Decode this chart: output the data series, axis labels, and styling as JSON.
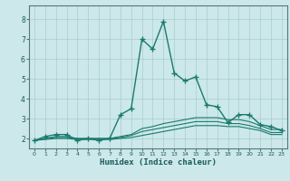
{
  "xlabel": "Humidex (Indice chaleur)",
  "bg_color": "#cce8ea",
  "grid_color": "#aacccc",
  "line_color": "#1a7a6e",
  "xlim": [
    -0.5,
    23.5
  ],
  "ylim": [
    1.5,
    8.7
  ],
  "xticks": [
    0,
    1,
    2,
    3,
    4,
    5,
    6,
    7,
    8,
    9,
    10,
    11,
    12,
    13,
    14,
    15,
    16,
    17,
    18,
    19,
    20,
    21,
    22,
    23
  ],
  "yticks": [
    2,
    3,
    4,
    5,
    6,
    7,
    8
  ],
  "series": [
    {
      "x": [
        0,
        1,
        2,
        3,
        4,
        5,
        6,
        7,
        8,
        9,
        10,
        11,
        12,
        13,
        14,
        15,
        16,
        17,
        18,
        19,
        20,
        21,
        22,
        23
      ],
      "y": [
        1.9,
        2.1,
        2.2,
        2.2,
        1.9,
        2.0,
        1.9,
        2.0,
        3.2,
        3.5,
        7.0,
        6.5,
        7.9,
        5.3,
        4.9,
        5.1,
        3.7,
        3.6,
        2.8,
        3.2,
        3.2,
        2.7,
        2.6,
        2.4
      ],
      "marker": "+",
      "markersize": 4,
      "linewidth": 1.0,
      "zorder": 3
    },
    {
      "x": [
        0,
        1,
        2,
        3,
        4,
        5,
        6,
        7,
        8,
        9,
        10,
        11,
        12,
        13,
        14,
        15,
        16,
        17,
        18,
        19,
        20,
        21,
        22,
        23
      ],
      "y": [
        1.9,
        2.0,
        2.1,
        2.1,
        2.0,
        2.0,
        2.0,
        2.0,
        2.1,
        2.2,
        2.5,
        2.6,
        2.75,
        2.85,
        2.95,
        3.05,
        3.05,
        3.05,
        2.95,
        2.95,
        2.85,
        2.65,
        2.45,
        2.45
      ],
      "marker": null,
      "markersize": 0,
      "linewidth": 0.8,
      "zorder": 2
    },
    {
      "x": [
        0,
        1,
        2,
        3,
        4,
        5,
        6,
        7,
        8,
        9,
        10,
        11,
        12,
        13,
        14,
        15,
        16,
        17,
        18,
        19,
        20,
        21,
        22,
        23
      ],
      "y": [
        1.9,
        2.0,
        2.05,
        2.05,
        2.0,
        2.0,
        2.0,
        2.0,
        2.05,
        2.15,
        2.35,
        2.45,
        2.55,
        2.65,
        2.75,
        2.85,
        2.85,
        2.85,
        2.75,
        2.75,
        2.65,
        2.5,
        2.3,
        2.3
      ],
      "marker": null,
      "markersize": 0,
      "linewidth": 0.8,
      "zorder": 2
    },
    {
      "x": [
        0,
        1,
        2,
        3,
        4,
        5,
        6,
        7,
        8,
        9,
        10,
        11,
        12,
        13,
        14,
        15,
        16,
        17,
        18,
        19,
        20,
        21,
        22,
        23
      ],
      "y": [
        1.9,
        1.95,
        2.0,
        2.0,
        1.95,
        1.95,
        1.95,
        1.95,
        2.0,
        2.05,
        2.15,
        2.25,
        2.35,
        2.45,
        2.55,
        2.65,
        2.65,
        2.65,
        2.6,
        2.6,
        2.5,
        2.4,
        2.2,
        2.2
      ],
      "marker": null,
      "markersize": 0,
      "linewidth": 0.8,
      "zorder": 2
    }
  ]
}
